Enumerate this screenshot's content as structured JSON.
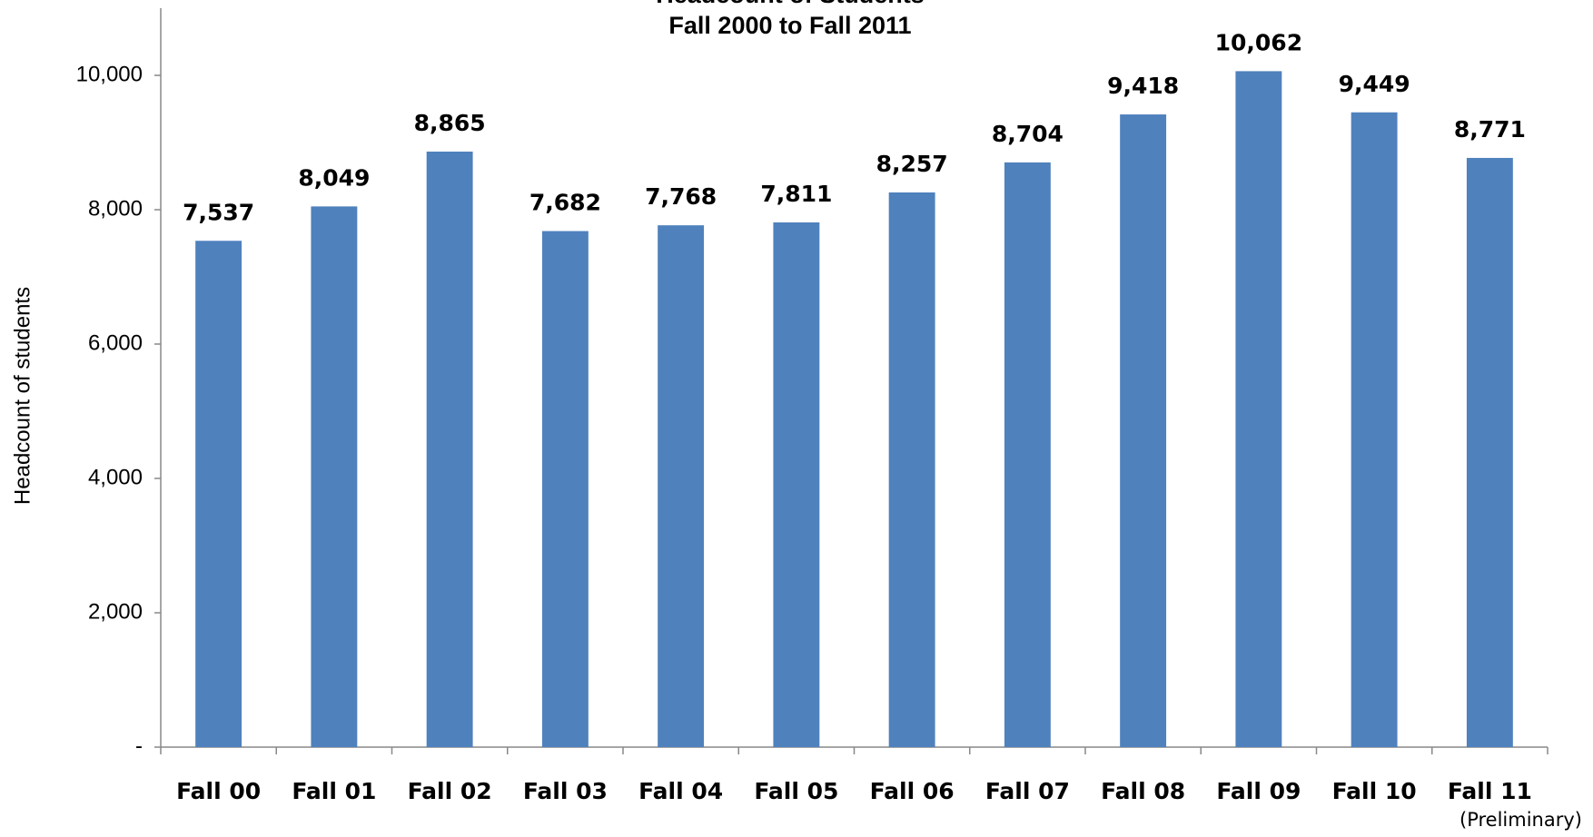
{
  "chart_data": {
    "type": "bar",
    "title": "Headcount of Students",
    "subtitle": "Fall 2000 to Fall 2011",
    "y_axis_label": "Headcount of students",
    "categories": [
      "Fall 00",
      "Fall 01",
      "Fall 02",
      "Fall 03",
      "Fall 04",
      "Fall 05",
      "Fall 06",
      "Fall 07",
      "Fall 08",
      "Fall 09",
      "Fall 10",
      "Fall 11"
    ],
    "values": [
      7537,
      8049,
      8865,
      7682,
      7768,
      7811,
      8257,
      8704,
      9418,
      10062,
      9449,
      8771
    ],
    "value_labels": [
      "7,537",
      "8,049",
      "8,865",
      "7,682",
      "7,768",
      "7,811",
      "8,257",
      "8,704",
      "9,418",
      "10,062",
      "9,449",
      "8,771"
    ],
    "annotation": "(Preliminary)",
    "color": "#4f81bd",
    "ylim": [
      0,
      11000
    ],
    "yticks": [
      {
        "value": 0,
        "label": "-"
      },
      {
        "value": 2000,
        "label": "2,000"
      },
      {
        "value": 4000,
        "label": "4,000"
      },
      {
        "value": 6000,
        "label": "6,000"
      },
      {
        "value": 8000,
        "label": "8,000"
      },
      {
        "value": 10000,
        "label": "10,000"
      }
    ],
    "grid": false
  }
}
